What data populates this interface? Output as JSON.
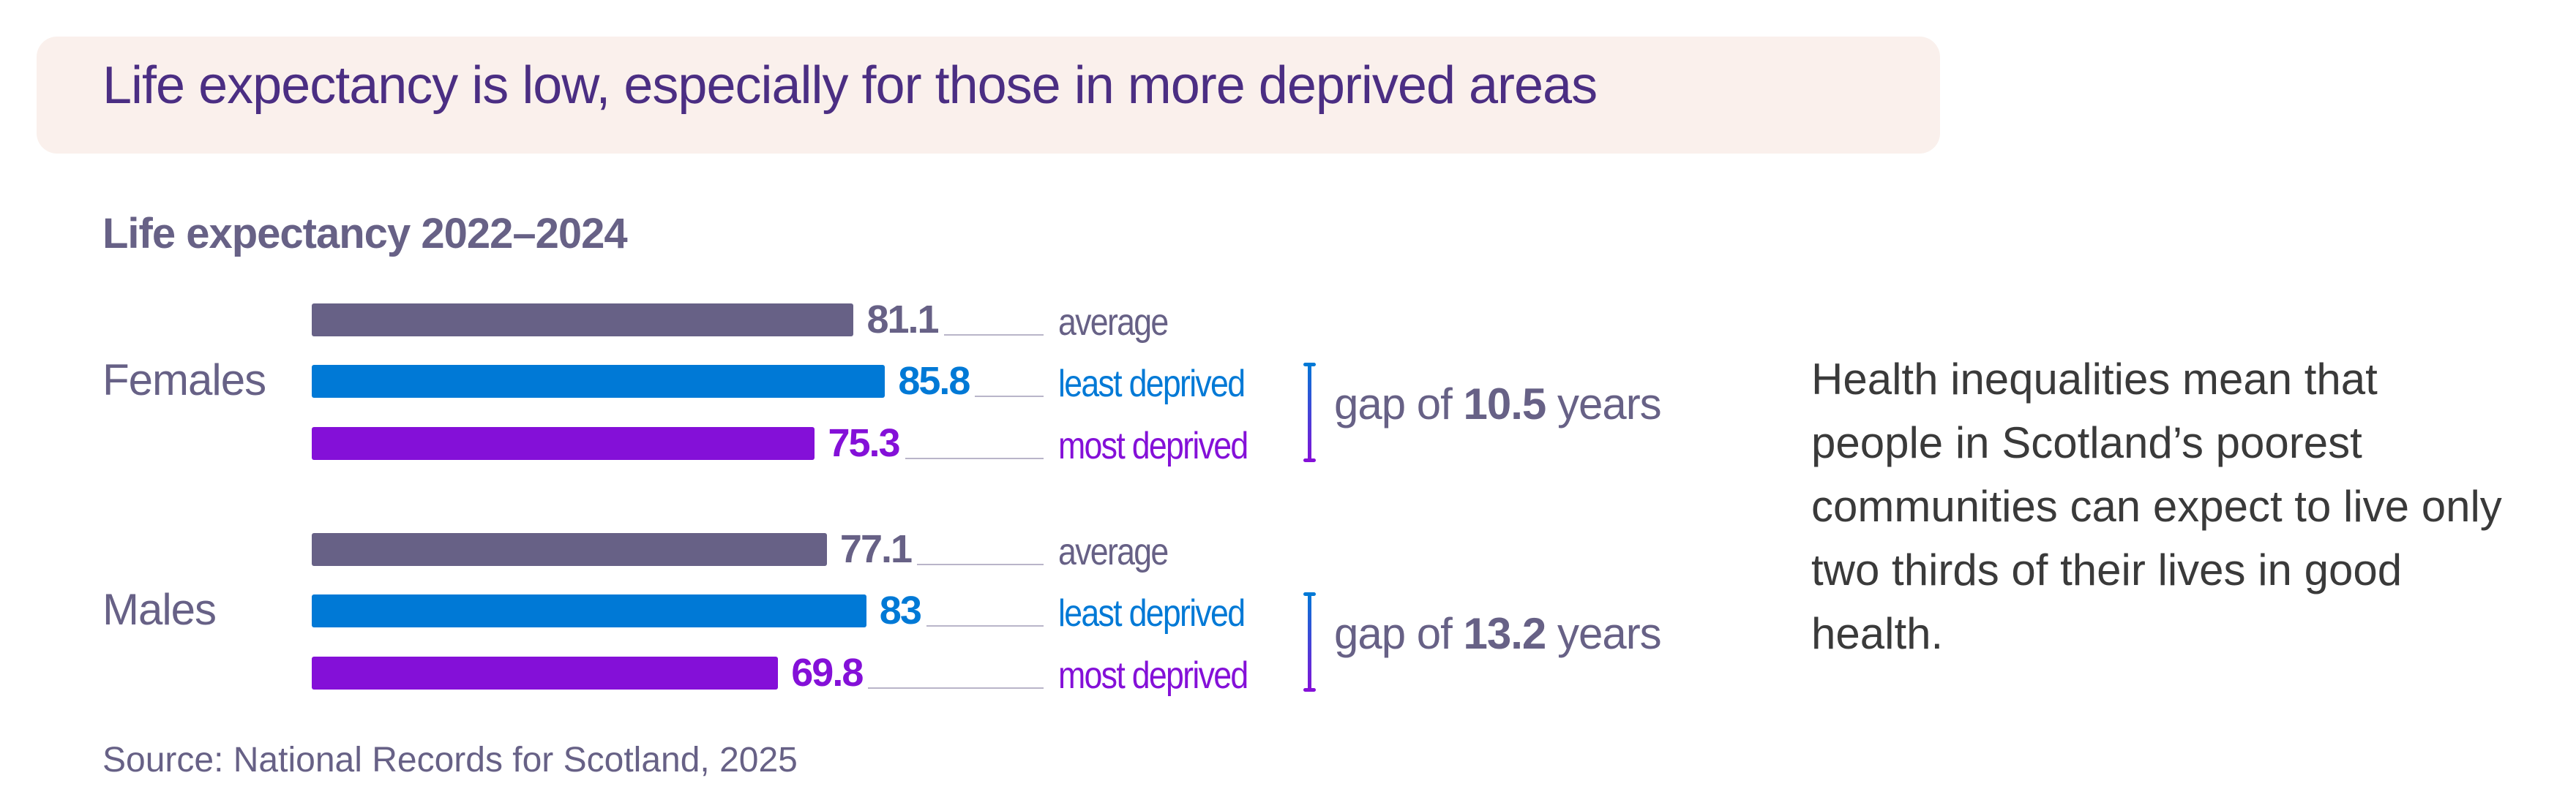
{
  "header": {
    "title": "Life expectancy is low, especially for those in more deprived areas"
  },
  "chart_data": {
    "type": "bar",
    "title": "Life expectancy 2022–2024",
    "categories": [
      "Females",
      "Males"
    ],
    "series": [
      {
        "name": "average",
        "values": [
          81.1,
          77.1
        ],
        "color": "#676186"
      },
      {
        "name": "least deprived",
        "values": [
          85.8,
          83
        ],
        "color": "#0079d6"
      },
      {
        "name": "most deprived",
        "values": [
          75.3,
          69.8
        ],
        "color": "#8410d8"
      }
    ],
    "value_labels": [
      [
        "81.1",
        "85.8",
        "75.3"
      ],
      [
        "77.1",
        "83",
        "69.8"
      ]
    ],
    "gaps": [
      {
        "prefix": "gap of",
        "value": "10.5",
        "suffix": "years"
      },
      {
        "prefix": "gap of",
        "value": "13.2",
        "suffix": "years"
      }
    ],
    "xlim": [
      0,
      100
    ]
  },
  "note": "Health inequalities mean that people in Scotland’s poorest communities can expect to live only two thirds of their lives in good health.",
  "source": "Source: National Records for Scotland, 2025"
}
